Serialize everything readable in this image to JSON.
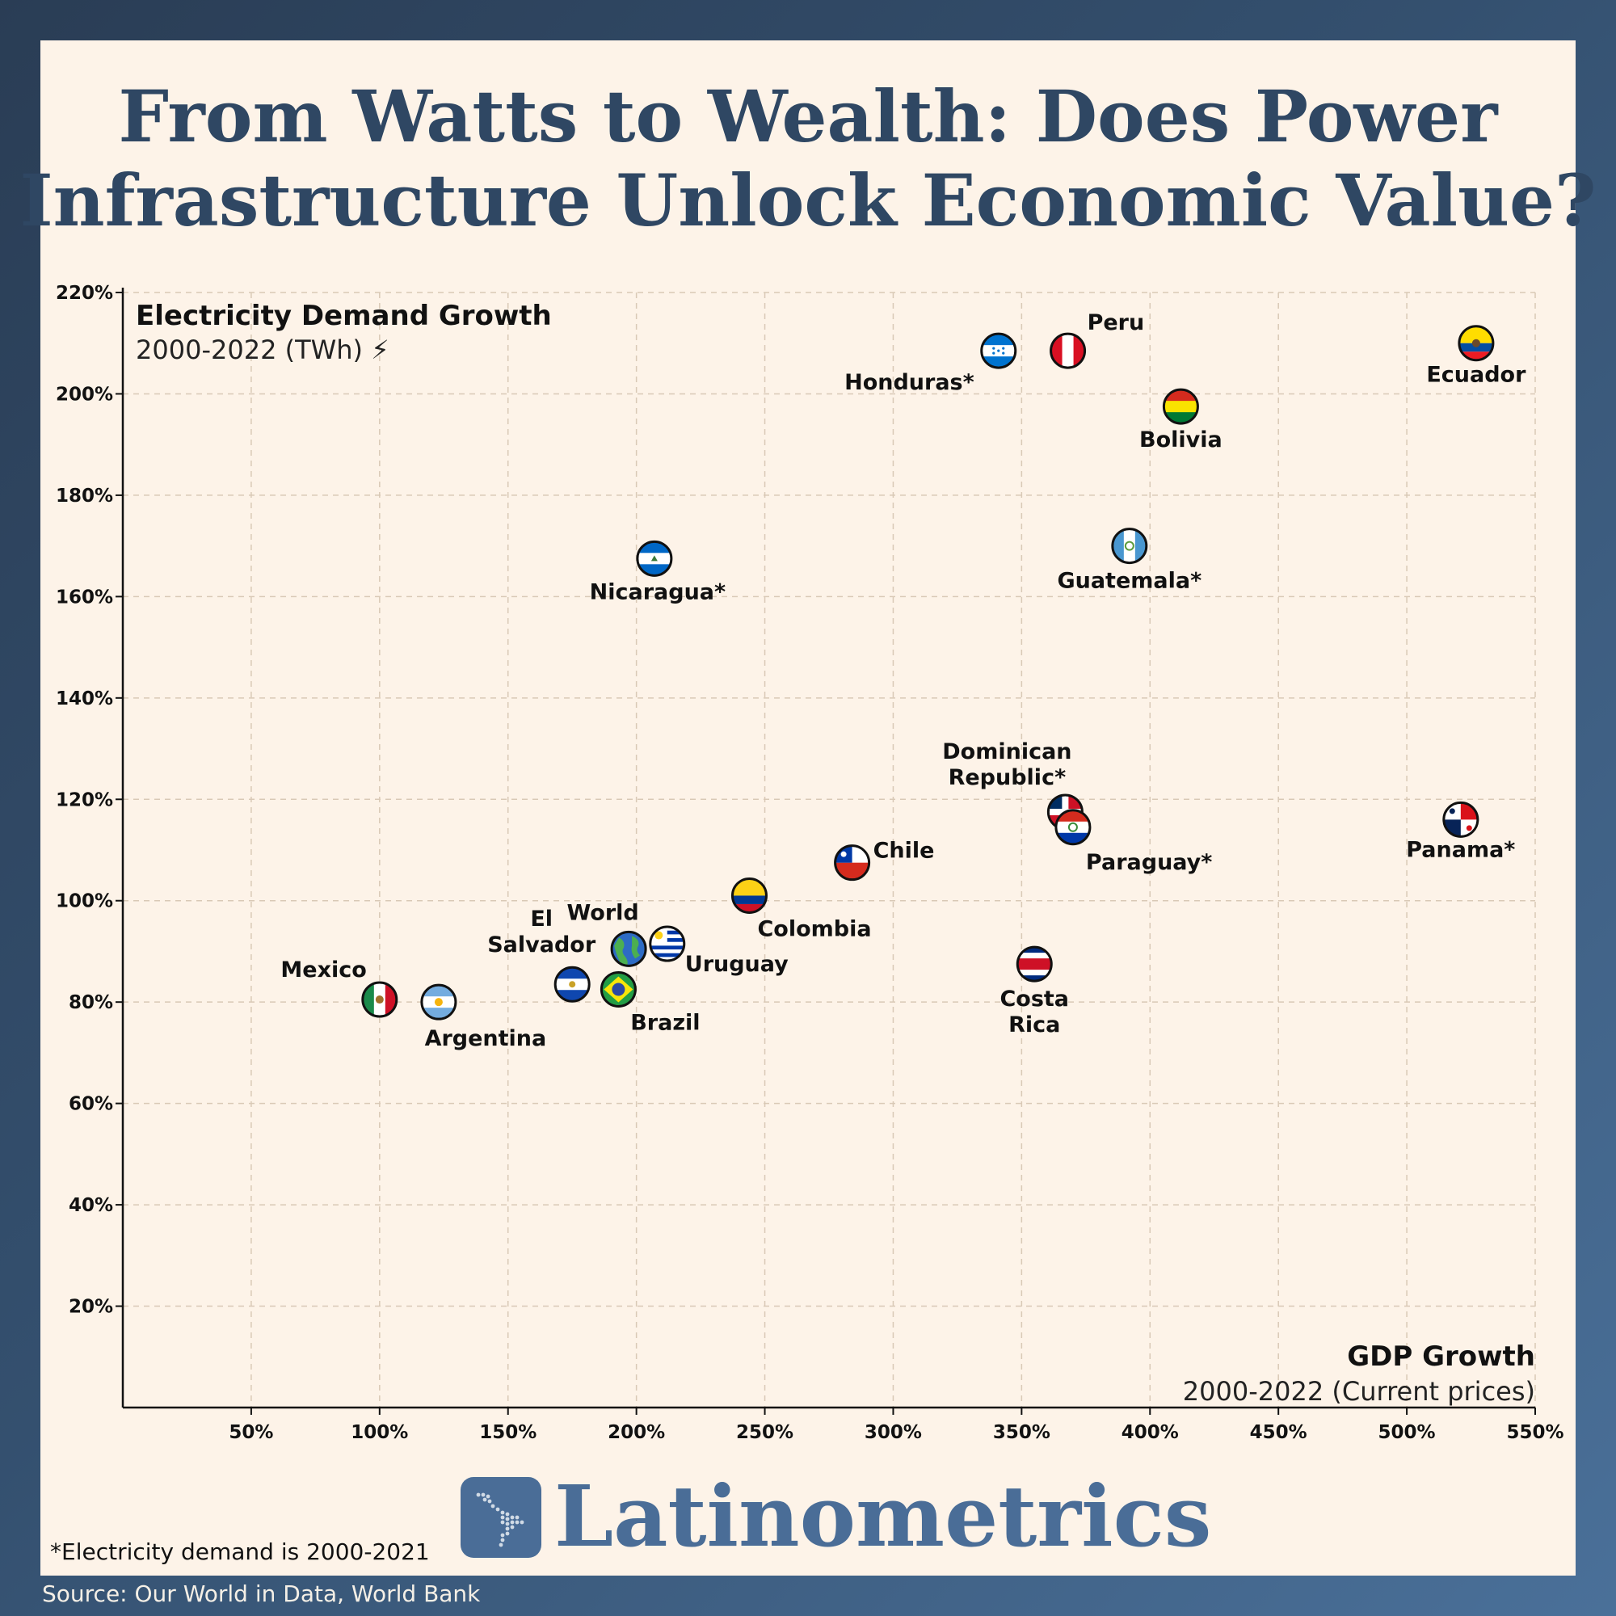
{
  "title_line1": "From Watts to Wealth: Does Power",
  "title_line2": "Infrastructure Unlock Economic Value?",
  "brand": "Latinometrics",
  "footnote": "*Electricity demand is 2000-2021",
  "source": "Source: Our World in Data, World Bank",
  "colors": {
    "background": "#2f4763",
    "panel": "#fdf3e8",
    "title": "#2f4763",
    "brand": "#4a6d97",
    "grid": "#d9c9b6"
  },
  "chart_data": {
    "type": "scatter",
    "title": "",
    "xlabel": "GDP Growth",
    "xlabel_sub": "2000-2022 (Current prices)",
    "ylabel": "Electricity Demand Growth",
    "ylabel_sub": "2000-2022 (TWh) ⚡",
    "xlim": [
      0,
      550
    ],
    "ylim": [
      0,
      220
    ],
    "x_ticks": [
      "50%",
      "100%",
      "150%",
      "200%",
      "250%",
      "300%",
      "350%",
      "400%",
      "450%",
      "500%",
      "550%"
    ],
    "y_ticks": [
      "20%",
      "40%",
      "60%",
      "80%",
      "100%",
      "120%",
      "140%",
      "160%",
      "180%",
      "200%",
      "220%"
    ],
    "grid": true,
    "points": [
      {
        "label": "Mexico",
        "x": 100,
        "y": 80.5,
        "icon": "mexico-flag-icon"
      },
      {
        "label": "Argentina",
        "x": 123,
        "y": 80,
        "icon": "argentina-flag-icon"
      },
      {
        "label": "El Salvador",
        "x": 175,
        "y": 83.5,
        "icon": "el-salvador-flag-icon"
      },
      {
        "label": "Brazil",
        "x": 193,
        "y": 82.5,
        "icon": "brazil-flag-icon"
      },
      {
        "label": "World",
        "x": 197,
        "y": 90.5,
        "icon": "globe-icon"
      },
      {
        "label": "Uruguay",
        "x": 212,
        "y": 91.5,
        "icon": "uruguay-flag-icon"
      },
      {
        "label": "Colombia",
        "x": 244,
        "y": 101,
        "icon": "colombia-flag-icon"
      },
      {
        "label": "Chile",
        "x": 284,
        "y": 107.5,
        "icon": "chile-flag-icon"
      },
      {
        "label": "Costa Rica",
        "x": 355,
        "y": 87.5,
        "icon": "costa-rica-flag-icon"
      },
      {
        "label": "Dominican Republic*",
        "x": 367,
        "y": 117.5,
        "icon": "dominican-republic-flag-icon"
      },
      {
        "label": "Paraguay*",
        "x": 370,
        "y": 114.5,
        "icon": "paraguay-flag-icon"
      },
      {
        "label": "Panama*",
        "x": 521,
        "y": 116,
        "icon": "panama-flag-icon"
      },
      {
        "label": "Nicaragua*",
        "x": 207,
        "y": 167.5,
        "icon": "nicaragua-flag-icon"
      },
      {
        "label": "Guatemala*",
        "x": 392,
        "y": 170,
        "icon": "guatemala-flag-icon"
      },
      {
        "label": "Honduras*",
        "x": 341,
        "y": 208.5,
        "icon": "honduras-flag-icon"
      },
      {
        "label": "Peru",
        "x": 368,
        "y": 208.5,
        "icon": "peru-flag-icon"
      },
      {
        "label": "Bolivia",
        "x": 412,
        "y": 197.5,
        "icon": "bolivia-flag-icon"
      },
      {
        "label": "Ecuador",
        "x": 527,
        "y": 210,
        "icon": "ecuador-flag-icon"
      }
    ]
  }
}
